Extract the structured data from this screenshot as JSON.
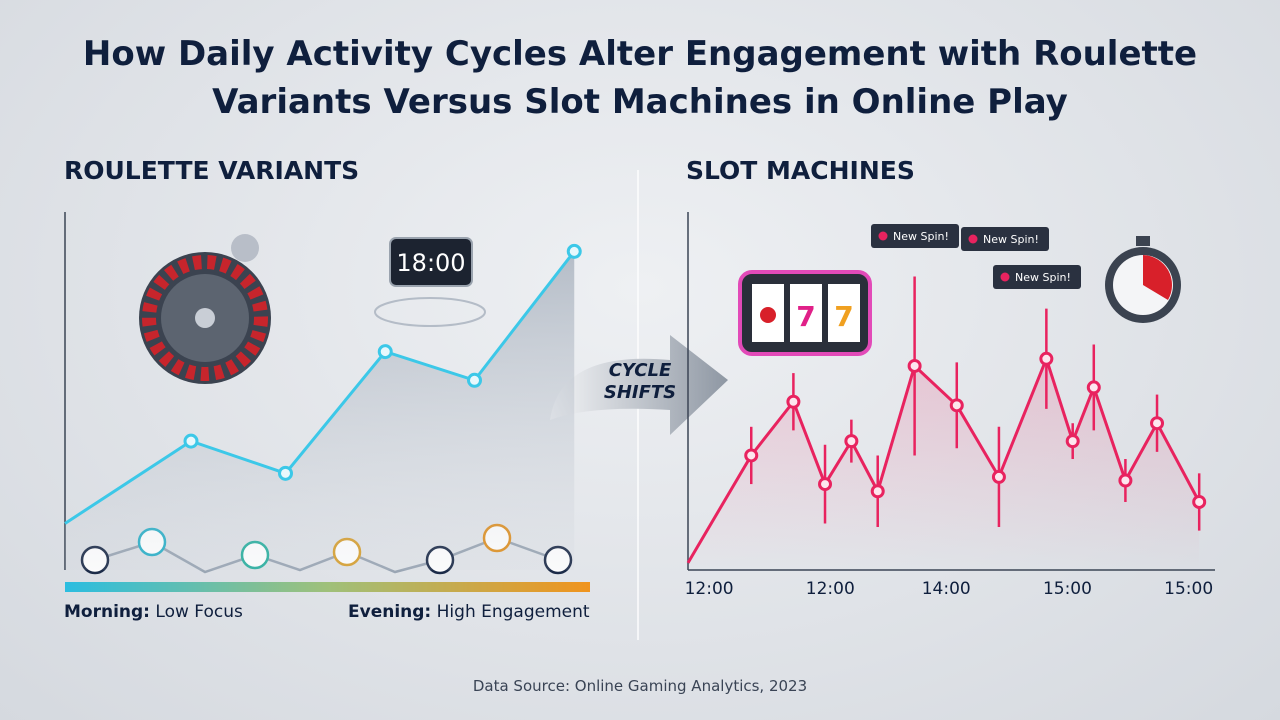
{
  "title": "How Daily Activity Cycles Alter Engagement with Roulette Variants Versus Slot Machines in Online Play",
  "transition_label": "CYCLE SHIFTS",
  "source": "Data Source: Online Gaming Analytics, 2023",
  "chart_data": [
    {
      "type": "line",
      "title": "ROULETTE VARIANTS",
      "color": "#3cc8e8",
      "x": [
        0,
        24,
        42,
        61,
        78,
        97
      ],
      "values": [
        13,
        36,
        27,
        61,
        53,
        89
      ],
      "xlim": [
        0,
        100
      ],
      "ylim": [
        0,
        100
      ],
      "clock_label": "18:00",
      "legend_left": {
        "label": "Morning:",
        "text": "Low Focus"
      },
      "legend_right": {
        "label": "Evening:",
        "text": "High Engagement"
      }
    },
    {
      "type": "errorbar",
      "title": "SLOT MACHINES",
      "color": "#e8235f",
      "x": [
        0,
        12,
        20,
        26,
        31,
        36,
        43,
        51,
        59,
        68,
        73,
        77,
        83,
        89,
        97
      ],
      "values": [
        2,
        32,
        47,
        24,
        36,
        22,
        57,
        46,
        26,
        59,
        36,
        51,
        25,
        41,
        19
      ],
      "errors": [
        null,
        8,
        8,
        11,
        6,
        10,
        25,
        12,
        14,
        14,
        5,
        12,
        6,
        8,
        8
      ],
      "xlim": [
        0,
        100
      ],
      "ylim": [
        0,
        100
      ],
      "xticks": [
        {
          "value": 4,
          "label": "12:00"
        },
        {
          "value": 27,
          "label": "12:00"
        },
        {
          "value": 49,
          "label": "14:00"
        },
        {
          "value": 72,
          "label": "15:00"
        },
        {
          "value": 95,
          "label": "15:00"
        }
      ],
      "annotations": [
        "New Spin!",
        "New Spin!",
        "New Spin!"
      ]
    }
  ]
}
